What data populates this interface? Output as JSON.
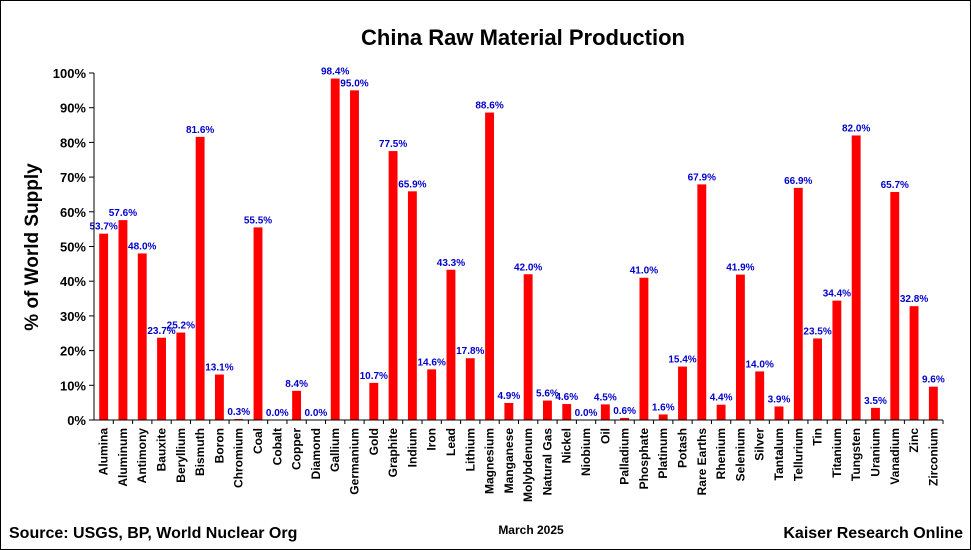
{
  "chart_data": {
    "type": "bar",
    "title": "China Raw Material Production",
    "xlabel": "",
    "ylabel": "% of World Supply",
    "ylim": [
      0,
      100
    ],
    "yticks": [
      "0%",
      "10%",
      "20%",
      "30%",
      "40%",
      "50%",
      "60%",
      "70%",
      "80%",
      "90%",
      "100%"
    ],
    "grid": false,
    "legend": "none",
    "bar_color": "#ff0000",
    "label_color": "#0000cc",
    "categories": [
      "Alumina",
      "Aluminum",
      "Antimony",
      "Bauxite",
      "Beryllium",
      "Bismuth",
      "Boron",
      "Chromium",
      "Coal",
      "Cobalt",
      "Copper",
      "Diamond",
      "Gallium",
      "Germanium",
      "Gold",
      "Graphite",
      "Indium",
      "Iron",
      "Lead",
      "Lithium",
      "Magnesium",
      "Manganese",
      "Molybdenum",
      "Natural Gas",
      "Nickel",
      "Niobium",
      "Oil",
      "Palladium",
      "Phosphate",
      "Platinum",
      "Potash",
      "Rare Earths",
      "Rhenium",
      "Selenium",
      "Silver",
      "Tantalum",
      "Tellurium",
      "Tin",
      "Titanium",
      "Tungsten",
      "Uranium",
      "Vanadium",
      "Zinc",
      "Zirconium"
    ],
    "values": [
      53.7,
      57.6,
      48.0,
      23.7,
      25.2,
      81.6,
      13.1,
      0.3,
      55.5,
      0.0,
      8.4,
      0.0,
      98.4,
      95.0,
      10.7,
      77.5,
      65.9,
      14.6,
      43.3,
      17.8,
      88.6,
      4.9,
      42.0,
      5.6,
      4.6,
      0.0,
      4.5,
      0.6,
      41.0,
      1.6,
      15.4,
      67.9,
      4.4,
      41.9,
      14.0,
      3.9,
      66.9,
      23.5,
      34.4,
      82.0,
      3.5,
      65.7,
      32.8,
      9.6
    ],
    "data_labels": [
      "53.7%",
      "57.6%",
      "48.0%",
      "23.7%",
      "25.2%",
      "81.6%",
      "13.1%",
      "0.3%",
      "55.5%",
      "0.0%",
      "8.4%",
      "0.0%",
      "98.4%",
      "95.0%",
      "10.7%",
      "77.5%",
      "65.9%",
      "14.6%",
      "43.3%",
      "17.8%",
      "88.6%",
      "4.9%",
      "42.0%",
      "5.6%",
      "4.6%",
      "0.0%",
      "4.5%",
      "0.6%",
      "41.0%",
      "1.6%",
      "15.4%",
      "67.9%",
      "4.4%",
      "41.9%",
      "14.0%",
      "3.9%",
      "66.9%",
      "23.5%",
      "34.4%",
      "82.0%",
      "3.5%",
      "65.7%",
      "32.8%",
      "9.6%"
    ]
  },
  "footer": {
    "source": "Source: USGS, BP, World Nuclear Org",
    "date": "March 2025",
    "credit": "Kaiser Research Online"
  }
}
